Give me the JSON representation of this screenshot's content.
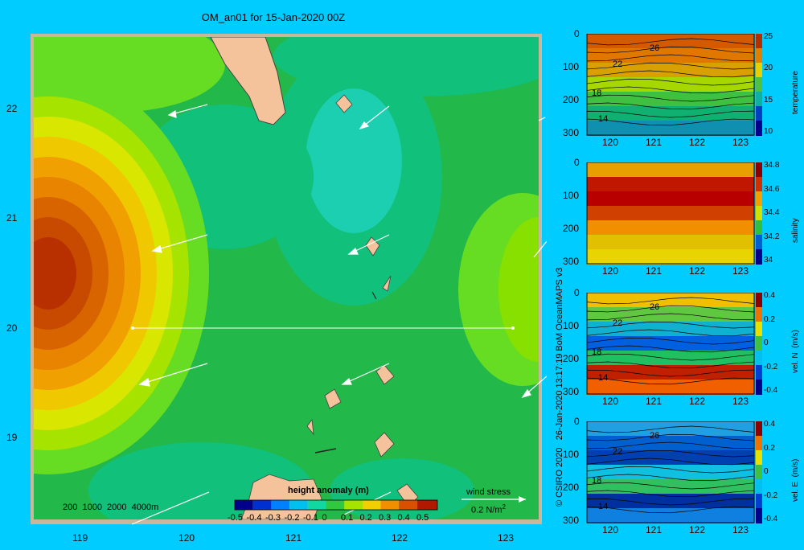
{
  "title": "OM_an01 for 15-Jan-2020 00Z",
  "map": {
    "x_ticks": [
      "119",
      "120",
      "121",
      "122",
      "123"
    ],
    "y_ticks": [
      "22",
      "21",
      "20",
      "19"
    ],
    "depth_legend": "200  1000  2000  4000m",
    "colorbar_title": "height anomaly (m)",
    "colorbar_ticks": [
      "-0.5",
      "-0.4",
      "-0.3",
      "-0.2",
      "-0.1",
      "0",
      "0.1",
      "0.2",
      "0.3",
      "0.4",
      "0.5"
    ],
    "wind_label": "wind stress",
    "wind_scale": "0.2 N/m",
    "wind_scale_sup": "2"
  },
  "credit": "© CSIRO 2020   26-Jan-2020 13:17:19 BoM OceanMAPS v3",
  "sections": [
    {
      "name": "temperature",
      "y_ticks": [
        "0",
        "100",
        "200",
        "300"
      ],
      "x_ticks": [
        "120",
        "121",
        "122",
        "123"
      ],
      "cb_ticks": [
        "25",
        "20",
        "15",
        "10"
      ],
      "cb_label": "temperature",
      "contour_labels": [
        "26",
        "22",
        "18",
        "14"
      ]
    },
    {
      "name": "salinity",
      "y_ticks": [
        "0",
        "100",
        "200",
        "300"
      ],
      "x_ticks": [
        "120",
        "121",
        "122",
        "123"
      ],
      "cb_ticks": [
        "34.8",
        "34.6",
        "34.4",
        "34.2",
        "34"
      ],
      "cb_label": "salinity",
      "contour_labels": []
    },
    {
      "name": "vel-n",
      "y_ticks": [
        "0",
        "100",
        "200",
        "300"
      ],
      "x_ticks": [
        "120",
        "121",
        "122",
        "123"
      ],
      "cb_ticks": [
        "0.4",
        "0.2",
        "0",
        "-0.2",
        "-0.4"
      ],
      "cb_label": "vel. N  (m/s)",
      "contour_labels": [
        "26",
        "22",
        "18",
        "14"
      ]
    },
    {
      "name": "vel-e",
      "y_ticks": [
        "0",
        "100",
        "200",
        "300"
      ],
      "x_ticks": [
        "120",
        "121",
        "122",
        "123"
      ],
      "cb_ticks": [
        "0.4",
        "0.2",
        "0",
        "-0.2",
        "-0.4"
      ],
      "cb_label": "vel. E  (m/s)",
      "contour_labels": [
        "26",
        "22",
        "18",
        "14"
      ]
    }
  ]
}
